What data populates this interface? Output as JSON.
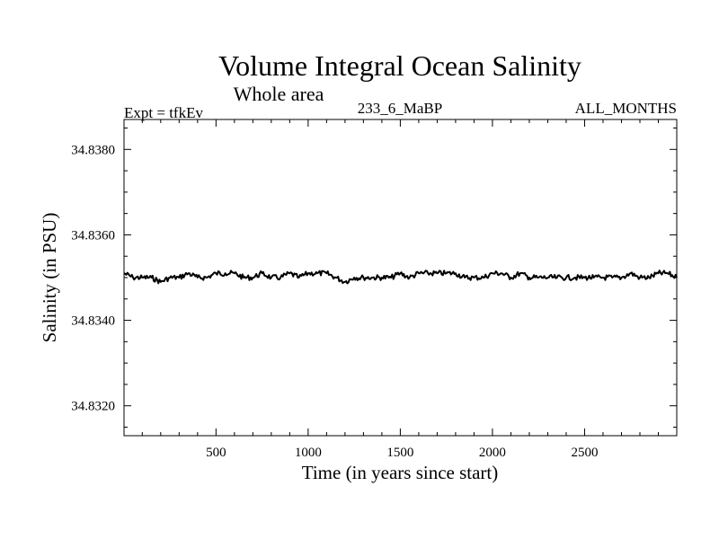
{
  "chart_data": {
    "type": "line",
    "title": "Volume Integral Ocean Salinity",
    "subtitle": "Whole area",
    "labels": {
      "left": "Expt = tfkEv",
      "center": "233_6_MaBP",
      "right": "ALL_MONTHS"
    },
    "xlabel": "Time (in years since start)",
    "ylabel": "Salinity (in PSU)",
    "xlim": [
      1,
      3000
    ],
    "ylim": [
      34.8313,
      34.8387
    ],
    "xticks": [
      500,
      1000,
      1500,
      2000,
      2500
    ],
    "xtick_labels": [
      "500",
      "1000",
      "1500",
      "2000",
      "2500"
    ],
    "yticks": [
      34.832,
      34.834,
      34.836,
      34.838
    ],
    "ytick_labels": [
      "34.8320",
      "34.8340",
      "34.8360",
      "34.8380"
    ],
    "grid": false,
    "series": [
      {
        "color": "#000000",
        "x": [
          1,
          50,
          100,
          150,
          200,
          250,
          300,
          350,
          400,
          450,
          500,
          550,
          600,
          650,
          700,
          750,
          800,
          850,
          900,
          950,
          1000,
          1050,
          1100,
          1150,
          1200,
          1250,
          1300,
          1350,
          1400,
          1450,
          1500,
          1550,
          1600,
          1650,
          1700,
          1750,
          1800,
          1850,
          1900,
          1950,
          2000,
          2050,
          2100,
          2150,
          2200,
          2250,
          2300,
          2350,
          2400,
          2450,
          2500,
          2550,
          2600,
          2650,
          2700,
          2750,
          2800,
          2850,
          2900,
          2950,
          3000
        ],
        "y": [
          34.8351,
          34.835,
          34.835,
          34.835,
          34.8349,
          34.835,
          34.835,
          34.8351,
          34.835,
          34.835,
          34.8351,
          34.8351,
          34.8351,
          34.835,
          34.835,
          34.8351,
          34.835,
          34.835,
          34.8351,
          34.835,
          34.8351,
          34.8351,
          34.8351,
          34.835,
          34.8349,
          34.835,
          34.835,
          34.835,
          34.835,
          34.835,
          34.8351,
          34.835,
          34.8351,
          34.8351,
          34.8351,
          34.8351,
          34.8351,
          34.835,
          34.835,
          34.835,
          34.8351,
          34.8351,
          34.835,
          34.8351,
          34.835,
          34.835,
          34.835,
          34.835,
          34.835,
          34.835,
          34.835,
          34.835,
          34.835,
          34.835,
          34.835,
          34.8351,
          34.835,
          34.835,
          34.8351,
          34.8351,
          34.835
        ]
      }
    ]
  }
}
